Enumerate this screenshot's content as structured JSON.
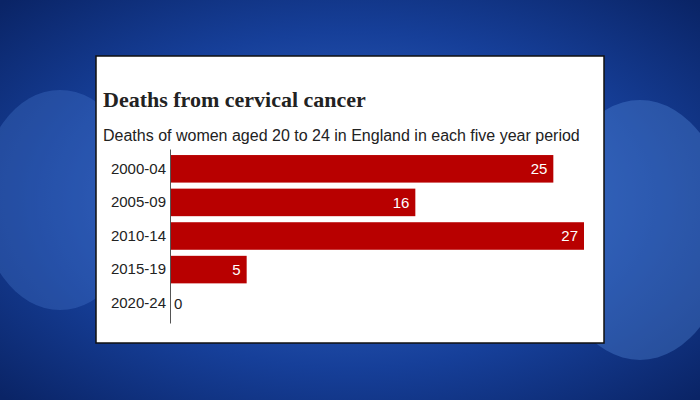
{
  "chart_data": {
    "type": "bar",
    "title": "Deaths from cervical cancer",
    "subtitle": "Deaths of women aged 20 to 24 in England in each five year period",
    "categories": [
      "2000-04",
      "2005-09",
      "2010-14",
      "2015-19",
      "2020-24"
    ],
    "values": [
      25,
      16,
      27,
      5,
      0
    ],
    "color": "#b80000",
    "orientation": "horizontal",
    "xlim": [
      0,
      27
    ],
    "data_labels": true,
    "tick_labels": "y",
    "grid": false
  }
}
